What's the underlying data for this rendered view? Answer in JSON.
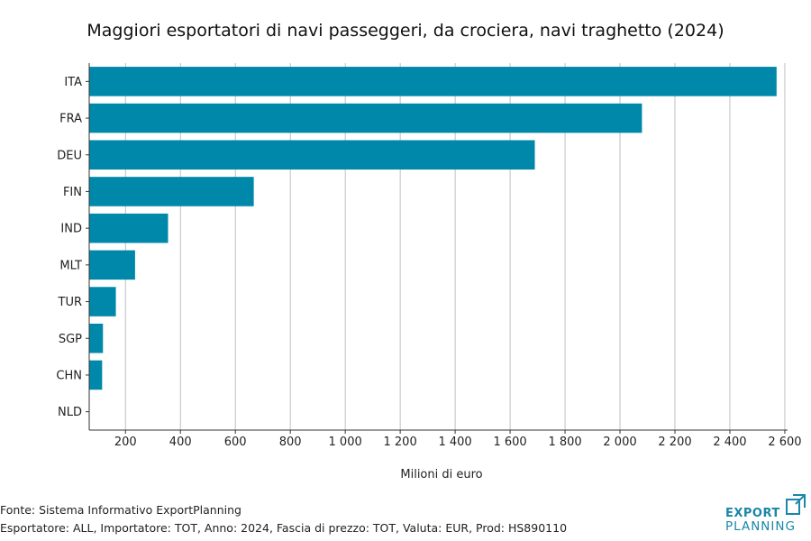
{
  "chart_data": {
    "type": "bar",
    "orientation": "horizontal",
    "title": "Maggiori esportatori di navi passeggeri, da crociera, navi traghetto (2024)",
    "xlabel": "Milioni di euro",
    "ylabel": "",
    "categories": [
      "ITA",
      "FRA",
      "DEU",
      "FIN",
      "IND",
      "MLT",
      "TUR",
      "SGP",
      "CHN",
      "NLD"
    ],
    "values": [
      2570,
      2080,
      1690,
      667,
      355,
      235,
      165,
      118,
      115,
      68
    ],
    "xlim": [
      68,
      2610
    ],
    "xticks": [
      200,
      400,
      600,
      800,
      1000,
      1200,
      1400,
      1600,
      1800,
      2000,
      2200,
      2400,
      2600
    ],
    "xtick_labels": [
      "200",
      "400",
      "600",
      "800",
      "1 000",
      "1 200",
      "1 400",
      "1 600",
      "1 800",
      "2 000",
      "2 200",
      "2 400",
      "2 600"
    ],
    "grid": "vertical",
    "bar_color": "#0088aa"
  },
  "footer": {
    "source": "Fonte: Sistema Informativo ExportPlanning",
    "params": "Esportatore: ALL, Importatore: TOT, Anno: 2024, Fascia di prezzo: TOT, Valuta: EUR, Prod: HS890110"
  },
  "logo": {
    "line1": "EXPORT",
    "line2": "PLANNING",
    "color": "#1a86a8"
  }
}
